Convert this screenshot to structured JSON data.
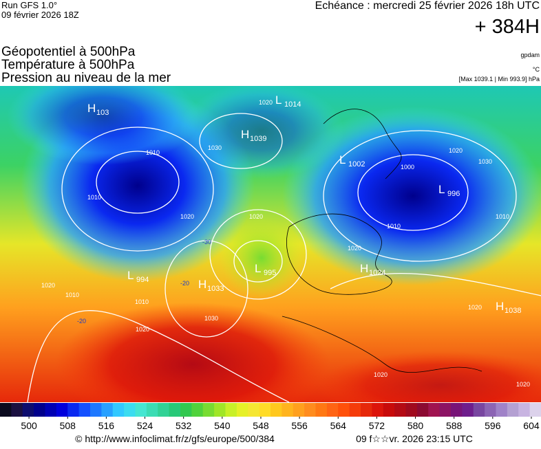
{
  "header": {
    "run": "Run GFS 1.0°",
    "run_date": "09 février 2026 18Z",
    "valid": "Echéance : mercredi 25 février 2026 18h UTC",
    "lead": "+ 384H",
    "fields": [
      "Géopotentiel à 500hPa",
      "Température à 500hPa",
      "Pression au niveau de la mer"
    ],
    "unit_geo": "gpdam",
    "unit_temp": "°C",
    "pressure_range": "[Max 1039.1 | Min 993.9] hPa"
  },
  "map": {
    "centers": [
      {
        "type": "H",
        "value": 103
      },
      {
        "type": "L",
        "value": 1014
      },
      {
        "type": "H",
        "value": 1039
      },
      {
        "type": "L",
        "value": 1002
      },
      {
        "type": "L",
        "value": 996
      },
      {
        "type": "L",
        "value": 994
      },
      {
        "type": "H",
        "value": 1033
      },
      {
        "type": "L",
        "value": 995
      },
      {
        "type": "H",
        "value": 1024
      },
      {
        "type": "H",
        "value": 1038
      }
    ],
    "isobar_labels": [
      1020,
      1030,
      1010,
      1010,
      1020,
      1020,
      1030,
      1020,
      1020,
      1010,
      1010,
      1020,
      1030,
      1000,
      1010,
      1010,
      1020,
      1020,
      1020,
      1020
    ],
    "temperature_labels": [
      -30,
      -20,
      -20
    ]
  },
  "colorbar": {
    "range": [
      494,
      606
    ],
    "ticks": [
      500,
      508,
      516,
      524,
      532,
      540,
      548,
      556,
      564,
      572,
      580,
      588,
      596,
      604
    ],
    "colors": [
      "#0a0a1e",
      "#1a1040",
      "#0d0d6e",
      "#00008c",
      "#0000b4",
      "#0000dc",
      "#0a28f0",
      "#1450ff",
      "#1e78ff",
      "#28a0ff",
      "#32c8ff",
      "#3cdcf0",
      "#46e6d2",
      "#3cdcb4",
      "#32d296",
      "#28c878",
      "#32c850",
      "#50d23c",
      "#78dc32",
      "#a0e628",
      "#c8f028",
      "#e6f028",
      "#f5e632",
      "#ffdc28",
      "#ffc81e",
      "#ffb41e",
      "#ffa01e",
      "#ff8c1e",
      "#ff7814",
      "#ff6414",
      "#ff500a",
      "#f53c0a",
      "#e6280a",
      "#dc140a",
      "#c80a0a",
      "#b40a14",
      "#a00a1e",
      "#8c0a32",
      "#a01450",
      "#8c1464",
      "#781478",
      "#6e1e8c",
      "#7846a0",
      "#8c64b4",
      "#a082c8",
      "#b4a0d2",
      "#c8b4e1",
      "#dcd2eb"
    ]
  },
  "footer": {
    "source": "© http://www.infoclimat.fr/z/gfs/europe/500/384",
    "generated": "09 f☆☆vr. 2026 23:15 UTC"
  }
}
